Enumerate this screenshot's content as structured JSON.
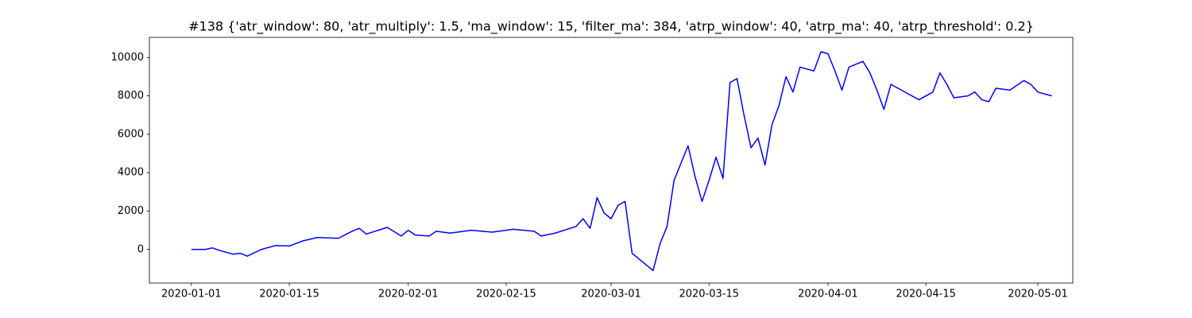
{
  "chart_data": {
    "type": "line",
    "title": "#138 {'atr_window': 80, 'atr_multiply': 1.5, 'ma_window': 15, 'filter_ma': 384, 'atrp_window': 40, 'atrp_ma': 40, 'atrp_threshold': 0.2}",
    "x": [
      "2020-01-01",
      "2020-01-03",
      "2020-01-04",
      "2020-01-05",
      "2020-01-07",
      "2020-01-08",
      "2020-01-09",
      "2020-01-11",
      "2020-01-13",
      "2020-01-15",
      "2020-01-17",
      "2020-01-19",
      "2020-01-22",
      "2020-01-24",
      "2020-01-25",
      "2020-01-26",
      "2020-01-29",
      "2020-01-31",
      "2020-02-01",
      "2020-02-02",
      "2020-02-04",
      "2020-02-05",
      "2020-02-07",
      "2020-02-10",
      "2020-02-13",
      "2020-02-16",
      "2020-02-19",
      "2020-02-20",
      "2020-02-22",
      "2020-02-25",
      "2020-02-26",
      "2020-02-27",
      "2020-02-28",
      "2020-02-29",
      "2020-03-01",
      "2020-03-02",
      "2020-03-03",
      "2020-03-04",
      "2020-03-05",
      "2020-03-06",
      "2020-03-07",
      "2020-03-08",
      "2020-03-09",
      "2020-03-10",
      "2020-03-11",
      "2020-03-12",
      "2020-03-13",
      "2020-03-14",
      "2020-03-15",
      "2020-03-16",
      "2020-03-17",
      "2020-03-18",
      "2020-03-19",
      "2020-03-20",
      "2020-03-21",
      "2020-03-22",
      "2020-03-23",
      "2020-03-24",
      "2020-03-25",
      "2020-03-26",
      "2020-03-27",
      "2020-03-28",
      "2020-03-30",
      "2020-03-31",
      "2020-04-01",
      "2020-04-02",
      "2020-04-03",
      "2020-04-04",
      "2020-04-06",
      "2020-04-07",
      "2020-04-08",
      "2020-04-09",
      "2020-04-10",
      "2020-04-14",
      "2020-04-16",
      "2020-04-17",
      "2020-04-18",
      "2020-04-19",
      "2020-04-21",
      "2020-04-22",
      "2020-04-23",
      "2020-04-24",
      "2020-04-25",
      "2020-04-27",
      "2020-04-29",
      "2020-04-30",
      "2020-05-01",
      "2020-05-03"
    ],
    "values": [
      0,
      0,
      80,
      -50,
      -250,
      -200,
      -350,
      0,
      200,
      180,
      450,
      620,
      580,
      950,
      1100,
      800,
      1150,
      700,
      1000,
      750,
      700,
      950,
      850,
      1000,
      900,
      1050,
      950,
      700,
      850,
      1200,
      1600,
      1100,
      2700,
      1900,
      1600,
      2300,
      2500,
      -200,
      -500,
      -800,
      -1100,
      300,
      1200,
      3600,
      4500,
      5400,
      3800,
      2500,
      3600,
      4800,
      3700,
      8700,
      8900,
      7000,
      5300,
      5800,
      4400,
      6500,
      7500,
      9000,
      8200,
      9500,
      9300,
      10300,
      10200,
      9300,
      8300,
      9500,
      9800,
      9200,
      8300,
      7300,
      8600,
      7800,
      8200,
      9200,
      8600,
      7900,
      8000,
      8200,
      7800,
      7700,
      8400,
      8300,
      8800,
      8600,
      8200,
      8000
    ],
    "color": "#0000ff",
    "xlim": [
      "2019-12-26",
      "2020-05-06"
    ],
    "xticks": [
      "2020-01-01",
      "2020-01-15",
      "2020-02-01",
      "2020-02-15",
      "2020-03-01",
      "2020-03-15",
      "2020-04-01",
      "2020-04-15",
      "2020-05-01"
    ],
    "ylim": [
      -1750,
      11050
    ],
    "yticks": [
      0,
      2000,
      4000,
      6000,
      8000,
      10000
    ]
  }
}
